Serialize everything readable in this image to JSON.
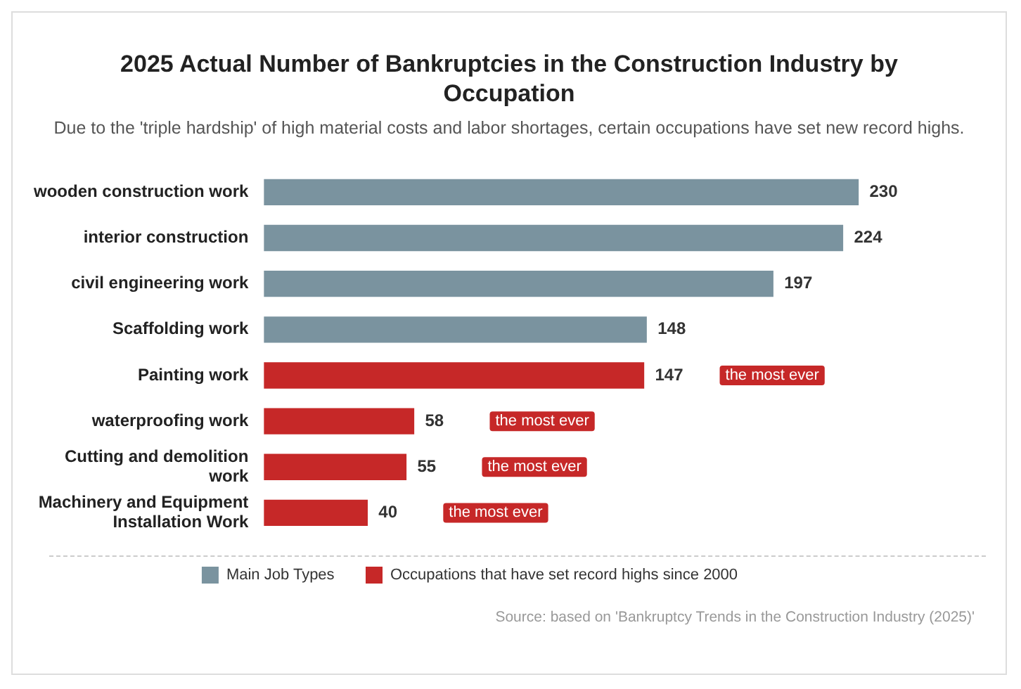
{
  "chart_data": {
    "type": "bar",
    "orientation": "horizontal",
    "stacked": true,
    "title": "2025 Actual Number of Bankruptcies in the Construction Industry by Occupation",
    "subtitle": "Due to the 'triple hardship' of high material costs and labor shortages, certain occupations have set new record highs.",
    "categories": [
      "wooden construction work",
      "interior construction",
      "civil engineering work",
      "Scaffolding work",
      "Painting work",
      "waterproofing work",
      "Cutting and demolition work",
      "Machinery and Equipment Installation Work"
    ],
    "series": [
      {
        "name": "Main Job Types",
        "color": "#7a939f",
        "values": [
          230,
          224,
          197,
          148,
          null,
          null,
          null,
          null
        ]
      },
      {
        "name": "Occupations that have set record highs since 2000",
        "color": "#c62828",
        "values": [
          null,
          null,
          null,
          null,
          147,
          58,
          55,
          40
        ]
      }
    ],
    "data_labels": true,
    "legend": "bottom",
    "grid": false,
    "annotations": [
      "the most ever",
      "the most ever",
      "the most ever",
      "the most ever",
      "Source: based on 'Bankruptcy Trends in the Construction Industry (2025)'"
    ]
  }
}
